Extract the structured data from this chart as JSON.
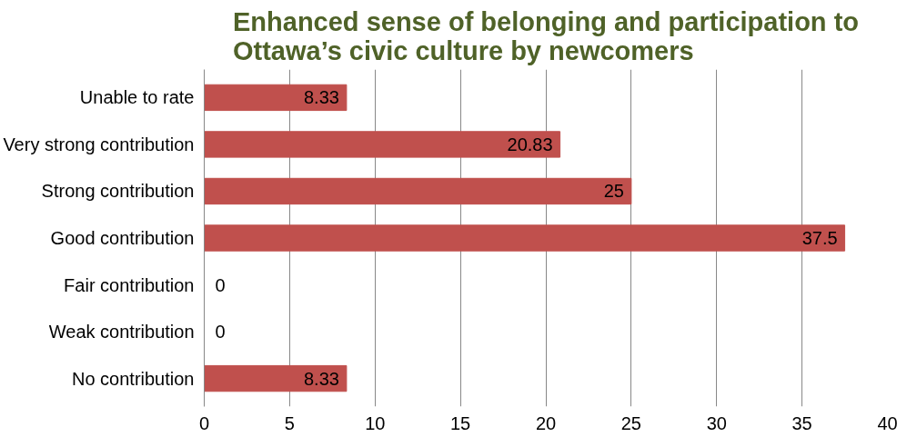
{
  "chart_data": {
    "type": "bar",
    "orientation": "horizontal",
    "title": "Enhanced sense of belonging and participation to\nOttawa’s civic culture by newcomers",
    "categories": [
      "Unable to rate",
      "Very strong contribution",
      "Strong contribution",
      "Good contribution",
      "Fair contribution",
      "Weak contribution",
      "No contribution"
    ],
    "values": [
      8.33,
      20.83,
      25,
      37.5,
      0,
      0,
      8.33
    ],
    "color": "#c0504d",
    "xlim": [
      0,
      40
    ],
    "xticks": [
      0,
      5,
      10,
      15,
      20,
      25,
      30,
      35,
      40
    ],
    "grid": "x",
    "data_labels": true
  }
}
